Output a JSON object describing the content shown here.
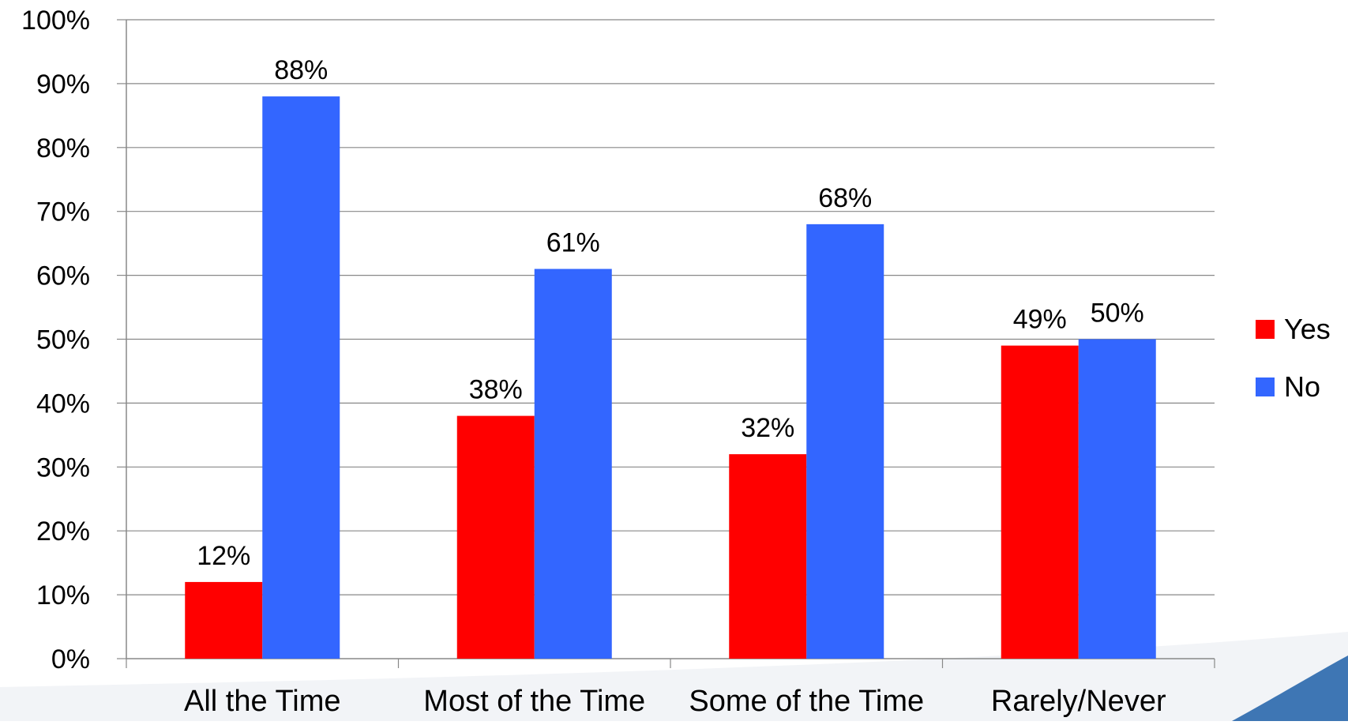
{
  "chart_data": {
    "type": "bar",
    "title": "",
    "xlabel": "",
    "ylabel": "",
    "categories": [
      "All the Time",
      "Most of the Time",
      "Some of the Time",
      "Rarely/Never"
    ],
    "series": [
      {
        "name": "Yes",
        "color": "#ff0000",
        "values": [
          12,
          38,
          32,
          49
        ],
        "labels": [
          "12%",
          "38%",
          "32%",
          "49%"
        ]
      },
      {
        "name": "No",
        "color": "#3366ff",
        "values": [
          88,
          61,
          68,
          50
        ],
        "labels": [
          "88%",
          "61%",
          "68%",
          "50%"
        ]
      }
    ],
    "ylim": [
      0,
      100
    ],
    "y_ticks": [
      "0%",
      "10%",
      "20%",
      "30%",
      "40%",
      "50%",
      "60%",
      "70%",
      "80%",
      "90%",
      "100%"
    ],
    "grid": true,
    "legend_position": "right"
  }
}
